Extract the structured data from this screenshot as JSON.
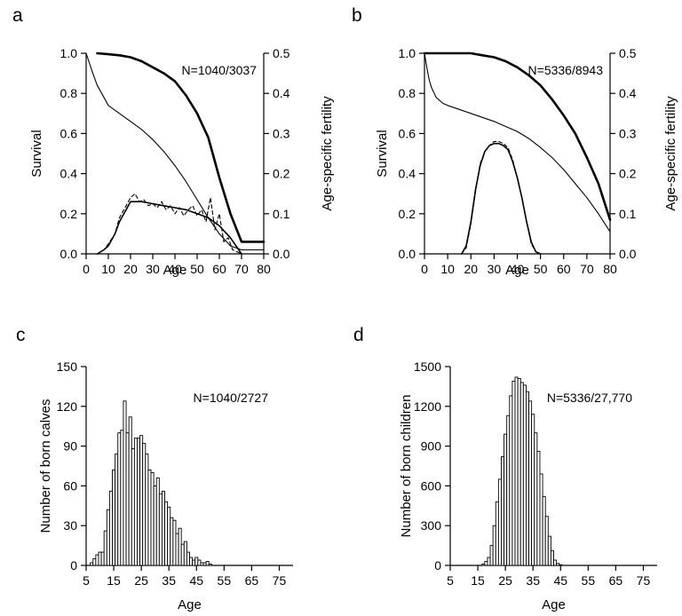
{
  "chart_data": [
    {
      "panel_label": "a",
      "type": "line",
      "annotation": "N=1040/3037",
      "xlabel": "Age",
      "ylabel_left": "Survival",
      "ylabel_right": "Age-specific fertility",
      "xlim": [
        0,
        80
      ],
      "ylim_left": [
        0,
        1.0
      ],
      "ylim_right": [
        0,
        0.5
      ],
      "xticks": [
        "0",
        "10",
        "20",
        "30",
        "40",
        "50",
        "60",
        "70",
        "80"
      ],
      "yticks_left": [
        "0.0",
        "0.2",
        "0.4",
        "0.6",
        "0.8",
        "1.0"
      ],
      "yticks_right": [
        "0.0",
        "0.1",
        "0.2",
        "0.3",
        "0.4",
        "0.5"
      ],
      "series": [
        {
          "style": "thick",
          "axis": "left",
          "x": [
            5,
            10,
            15,
            20,
            25,
            30,
            35,
            40,
            45,
            50,
            55,
            60,
            65,
            70,
            75,
            80
          ],
          "y": [
            1.0,
            0.995,
            0.99,
            0.98,
            0.96,
            0.93,
            0.9,
            0.86,
            0.79,
            0.7,
            0.58,
            0.38,
            0.2,
            0.06,
            0.06,
            0.06
          ]
        },
        {
          "style": "thin",
          "axis": "left",
          "x": [
            0,
            3,
            5,
            8,
            10,
            15,
            20,
            25,
            30,
            35,
            40,
            45,
            50,
            55,
            60,
            65,
            70,
            75,
            80
          ],
          "y": [
            1.0,
            0.9,
            0.84,
            0.78,
            0.74,
            0.7,
            0.66,
            0.62,
            0.57,
            0.51,
            0.44,
            0.36,
            0.27,
            0.18,
            0.1,
            0.04,
            0.02,
            0.02,
            0.02
          ]
        },
        {
          "style": "solid",
          "axis": "right",
          "x": [
            5,
            8,
            10,
            13,
            15,
            18,
            20,
            25,
            30,
            35,
            40,
            45,
            50,
            55,
            60,
            65,
            70
          ],
          "y": [
            0,
            0.01,
            0.02,
            0.05,
            0.08,
            0.11,
            0.13,
            0.13,
            0.125,
            0.12,
            0.115,
            0.11,
            0.1,
            0.09,
            0.07,
            0.04,
            0
          ]
        },
        {
          "style": "dashed",
          "axis": "right",
          "x": [
            5,
            8,
            10,
            13,
            15,
            18,
            20,
            22,
            24,
            26,
            28,
            30,
            32,
            34,
            36,
            38,
            40,
            42,
            44,
            46,
            48,
            50,
            52,
            54,
            56,
            58,
            60,
            62,
            64,
            66,
            68,
            70
          ],
          "y": [
            0,
            0.01,
            0.025,
            0.05,
            0.09,
            0.12,
            0.14,
            0.15,
            0.13,
            0.135,
            0.12,
            0.125,
            0.115,
            0.13,
            0.11,
            0.12,
            0.1,
            0.115,
            0.095,
            0.11,
            0.12,
            0.095,
            0.11,
            0.08,
            0.14,
            0.06,
            0.1,
            0.03,
            0.04,
            0.01,
            0.005,
            0
          ]
        }
      ]
    },
    {
      "panel_label": "b",
      "type": "line",
      "annotation": "N=5336/8943",
      "xlabel": "Age",
      "ylabel_left": "Survival",
      "ylabel_right": "Age-specific fertility",
      "xlim": [
        0,
        80
      ],
      "ylim_left": [
        0,
        1.0
      ],
      "ylim_right": [
        0,
        0.5
      ],
      "xticks": [
        "0",
        "10",
        "20",
        "30",
        "40",
        "50",
        "60",
        "70",
        "80"
      ],
      "yticks_left": [
        "0.0",
        "0.2",
        "0.4",
        "0.6",
        "0.8",
        "1.0"
      ],
      "yticks_right": [
        "0.0",
        "0.1",
        "0.2",
        "0.3",
        "0.4",
        "0.5"
      ],
      "series": [
        {
          "style": "thick",
          "axis": "left",
          "x": [
            0,
            10,
            20,
            25,
            30,
            35,
            40,
            45,
            50,
            55,
            60,
            65,
            70,
            75,
            80
          ],
          "y": [
            1.0,
            1.0,
            1.0,
            0.99,
            0.98,
            0.96,
            0.93,
            0.89,
            0.84,
            0.77,
            0.69,
            0.6,
            0.48,
            0.35,
            0.17
          ]
        },
        {
          "style": "thin",
          "axis": "left",
          "x": [
            0,
            1,
            2,
            3,
            5,
            8,
            10,
            15,
            20,
            25,
            30,
            35,
            40,
            45,
            50,
            55,
            60,
            65,
            70,
            75,
            80
          ],
          "y": [
            1.0,
            0.93,
            0.87,
            0.83,
            0.78,
            0.75,
            0.74,
            0.72,
            0.7,
            0.68,
            0.66,
            0.635,
            0.61,
            0.575,
            0.53,
            0.48,
            0.42,
            0.35,
            0.28,
            0.2,
            0.11
          ]
        },
        {
          "style": "solid",
          "axis": "right",
          "x": [
            16,
            18,
            20,
            22,
            24,
            26,
            28,
            30,
            32,
            34,
            36,
            38,
            40,
            42,
            44,
            46,
            48,
            50
          ],
          "y": [
            0,
            0.02,
            0.08,
            0.16,
            0.22,
            0.255,
            0.27,
            0.275,
            0.275,
            0.27,
            0.26,
            0.23,
            0.19,
            0.14,
            0.08,
            0.03,
            0.005,
            0
          ]
        },
        {
          "style": "dashed",
          "axis": "right",
          "x": [
            0,
            16,
            18,
            20,
            22,
            24,
            26,
            28,
            30,
            32,
            34,
            36,
            38,
            40,
            42,
            44,
            46,
            48,
            50,
            80
          ],
          "y": [
            0,
            0,
            0.015,
            0.075,
            0.155,
            0.225,
            0.255,
            0.27,
            0.28,
            0.28,
            0.275,
            0.265,
            0.235,
            0.19,
            0.14,
            0.08,
            0.025,
            0.005,
            0,
            0
          ]
        }
      ]
    },
    {
      "panel_label": "c",
      "type": "bar",
      "annotation": "N=1040/2727",
      "xlabel": "Age",
      "ylabel": "Number of born calves",
      "xlim": [
        5,
        80
      ],
      "ylim": [
        0,
        150
      ],
      "xticks": [
        "5",
        "15",
        "25",
        "35",
        "45",
        "55",
        "65",
        "75"
      ],
      "yticks": [
        "0",
        "30",
        "60",
        "90",
        "120",
        "150"
      ],
      "x_start": 7,
      "values": [
        2,
        5,
        8,
        10,
        10,
        26,
        42,
        56,
        72,
        84,
        100,
        102,
        124,
        100,
        112,
        88,
        96,
        96,
        98,
        92,
        84,
        72,
        70,
        60,
        66,
        54,
        56,
        48,
        44,
        36,
        34,
        24,
        28,
        16,
        18,
        10,
        6,
        4,
        6,
        4,
        2,
        2,
        3,
        1,
        0,
        0,
        0,
        0,
        0,
        0,
        0,
        0,
        0,
        0,
        0,
        0,
        0,
        0,
        0,
        0,
        0,
        0,
        0,
        0,
        0,
        0,
        0,
        0,
        0,
        0,
        0,
        0,
        0
      ]
    },
    {
      "panel_label": "d",
      "type": "bar",
      "annotation": "N=5336/27,770",
      "xlabel": "Age",
      "ylabel": "Number of born children",
      "xlim": [
        5,
        80
      ],
      "ylim": [
        0,
        1500
      ],
      "xticks": [
        "5",
        "15",
        "25",
        "35",
        "45",
        "55",
        "65",
        "75"
      ],
      "yticks": [
        "0",
        "300",
        "600",
        "900",
        "1200",
        "1500"
      ],
      "x_start": 17,
      "values": [
        10,
        30,
        60,
        150,
        300,
        480,
        650,
        820,
        990,
        1130,
        1280,
        1390,
        1420,
        1410,
        1380,
        1360,
        1310,
        1240,
        1140,
        1000,
        860,
        690,
        520,
        370,
        220,
        110,
        40,
        15,
        5,
        0,
        0,
        0,
        0,
        0,
        0,
        0,
        0,
        0,
        0,
        0,
        0,
        0,
        0,
        0,
        0,
        0,
        0,
        0,
        0,
        0,
        0,
        0,
        0,
        0,
        0,
        0,
        0,
        0,
        0,
        0,
        0,
        0,
        0
      ]
    }
  ]
}
